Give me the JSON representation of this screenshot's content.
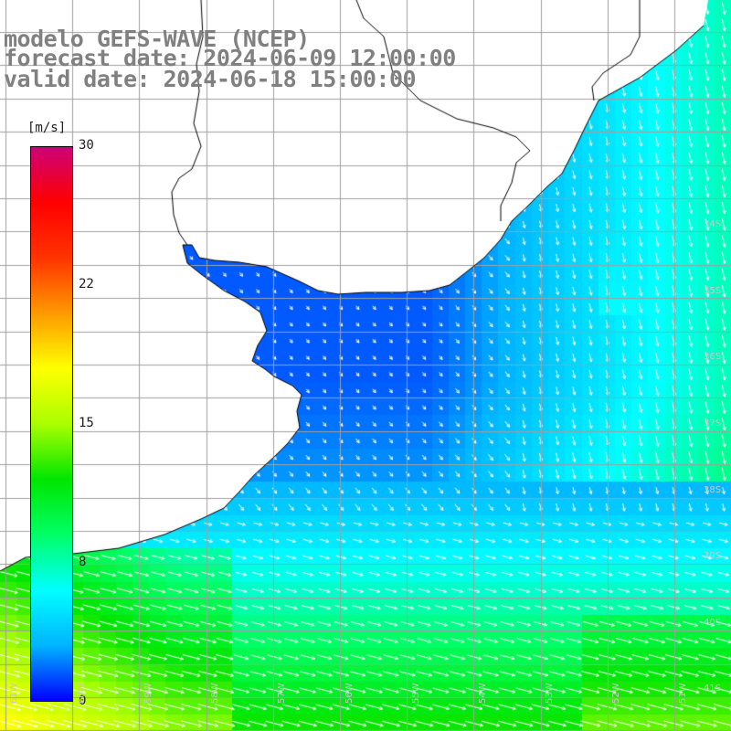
{
  "title": {
    "line1": "modelo GEFS-WAVE (NCEP)",
    "line2": "forecast date: 2024-06-09 12:00:00",
    "line3": "valid date: 2024-06-18 15:00:00"
  },
  "colorbar": {
    "unit": "[m/s]",
    "ticks": [
      "30",
      "22",
      "15",
      "8",
      "0"
    ],
    "tick_values": [
      30,
      22,
      15,
      8,
      0
    ],
    "colors": [
      "#0000ff",
      "#00b4ff",
      "#00ffff",
      "#00ff66",
      "#00e600",
      "#aaff00",
      "#ffff00",
      "#ff9900",
      "#ff3300",
      "#ff0000",
      "#cc0077"
    ]
  },
  "latitude_labels": [
    "34S",
    "35S",
    "36S",
    "37S",
    "38S",
    "39S",
    "40S",
    "41S"
  ],
  "longitude_labels": [
    "61W",
    "60W",
    "59W",
    "58W",
    "57W",
    "56W",
    "55W",
    "54W",
    "53W",
    "52W",
    "51W"
  ],
  "layers": {
    "land_color": "#ffffff",
    "grid_color": "#a0a0a0",
    "coast_color": "#000000",
    "arrow_color": "#ffffff"
  }
}
